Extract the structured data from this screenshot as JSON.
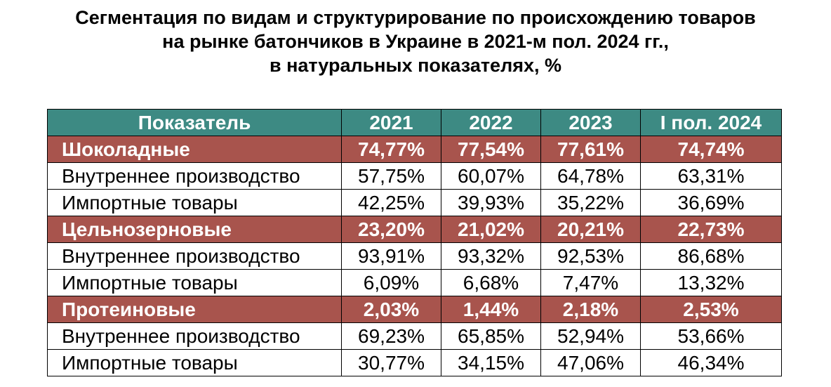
{
  "title": {
    "line1": "Сегментация по видам и структурирование по происхождению товаров",
    "line2": "на рынке батончиков в Украине в 2021-м пол. 2024 гг.,",
    "line3": "в натуральных показателях, %"
  },
  "colors": {
    "header_bg": "#3d8a83",
    "segment_bg": "#a8544d",
    "text_light": "#ffffff",
    "text_dark": "#000000"
  },
  "chart_data": {
    "type": "table",
    "title": "Сегментация по видам и структурирование по происхождению товаров на рынке батончиков в Украине в 2021-м пол. 2024 гг., в натуральных показателях, %",
    "columns": [
      "Показатель",
      "2021",
      "2022",
      "2023",
      "I пол. 2024"
    ],
    "rows": [
      {
        "kind": "segment",
        "label": "Шоколадные",
        "values": [
          "74,77%",
          "77,54%",
          "77,61%",
          "74,74%"
        ]
      },
      {
        "kind": "sub",
        "label": "Внутреннее производство",
        "values": [
          "57,75%",
          "60,07%",
          "64,78%",
          "63,31%"
        ]
      },
      {
        "kind": "sub",
        "label": "Импортные товары",
        "values": [
          "42,25%",
          "39,93%",
          "35,22%",
          "36,69%"
        ]
      },
      {
        "kind": "segment",
        "label": "Цельнозерновые",
        "values": [
          "23,20%",
          "21,02%",
          "20,21%",
          "22,73%"
        ]
      },
      {
        "kind": "sub",
        "label": "Внутреннее производство",
        "values": [
          "93,91%",
          "93,32%",
          "92,53%",
          "86,68%"
        ]
      },
      {
        "kind": "sub",
        "label": "Импортные товары",
        "values": [
          "6,09%",
          "6,68%",
          "7,47%",
          "13,32%"
        ]
      },
      {
        "kind": "segment",
        "label": "Протеиновые",
        "values": [
          "2,03%",
          "1,44%",
          "2,18%",
          "2,53%"
        ]
      },
      {
        "kind": "sub",
        "label": "Внутреннее производство",
        "values": [
          "69,23%",
          "65,85%",
          "52,94%",
          "53,66%"
        ]
      },
      {
        "kind": "sub",
        "label": "Импортные товары",
        "values": [
          "30,77%",
          "34,15%",
          "47,06%",
          "46,34%"
        ]
      }
    ]
  }
}
